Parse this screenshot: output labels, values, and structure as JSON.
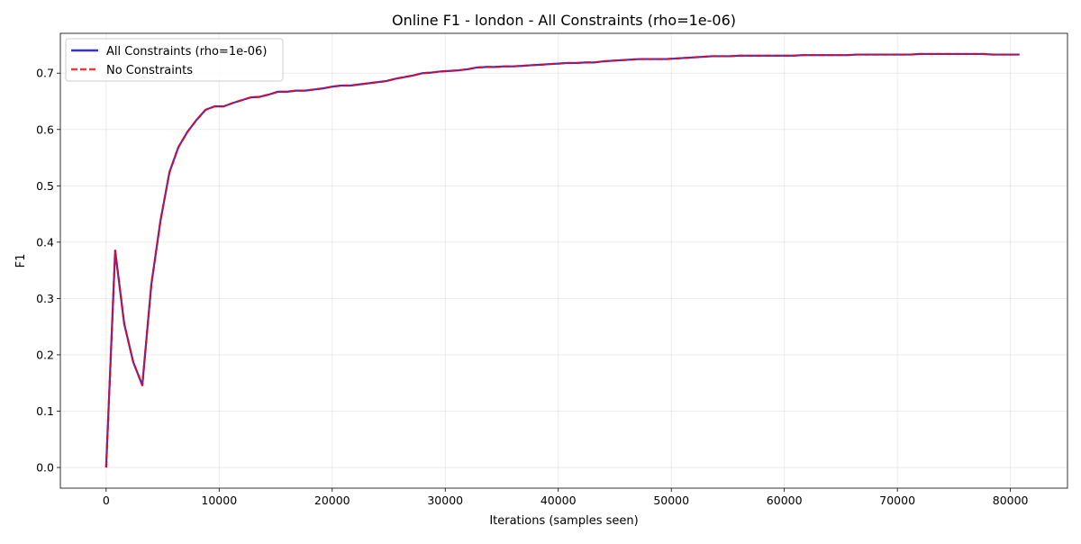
{
  "chart_data": {
    "type": "line",
    "title": "Online F1 - london - All Constraints (rho=1e-06)",
    "xlabel": "Iterations (samples seen)",
    "ylabel": "F1",
    "xlim": [
      -4050,
      85050
    ],
    "ylim": [
      -0.0367,
      0.7707
    ],
    "xticks": [
      0,
      10000,
      20000,
      30000,
      40000,
      50000,
      60000,
      70000,
      80000
    ],
    "yticks": [
      0.0,
      0.1,
      0.2,
      0.3,
      0.4,
      0.5,
      0.6,
      0.7
    ],
    "xtick_labels": [
      "0",
      "10000",
      "20000",
      "30000",
      "40000",
      "50000",
      "60000",
      "70000",
      "80000"
    ],
    "ytick_labels": [
      "0.0",
      "0.1",
      "0.2",
      "0.3",
      "0.4",
      "0.5",
      "0.6",
      "0.7"
    ],
    "grid": true,
    "legend_position": "top-left",
    "x": [
      0,
      800,
      1600,
      2400,
      3200,
      4000,
      4800,
      5600,
      6400,
      7200,
      8000,
      8800,
      9600,
      10400,
      11200,
      12000,
      12800,
      13600,
      14400,
      15200,
      16000,
      16800,
      17600,
      18400,
      19200,
      20000,
      20800,
      21600,
      22400,
      23200,
      24000,
      24800,
      25600,
      26400,
      27200,
      28000,
      28800,
      29600,
      30400,
      31200,
      32000,
      32800,
      33600,
      34400,
      35200,
      36000,
      36800,
      37600,
      38400,
      39200,
      40000,
      40800,
      41600,
      42400,
      43200,
      44000,
      44800,
      45600,
      46400,
      47200,
      48000,
      48800,
      49600,
      50400,
      51200,
      52000,
      52800,
      53600,
      54400,
      55200,
      56000,
      56800,
      57600,
      58400,
      59200,
      60000,
      60800,
      61600,
      62400,
      63200,
      64000,
      64800,
      65600,
      66400,
      67200,
      68000,
      68800,
      69600,
      70400,
      71200,
      72000,
      72800,
      73600,
      74400,
      75200,
      76000,
      76800,
      77600,
      78400,
      79200,
      80000,
      80800
    ],
    "series": [
      {
        "name": "All Constraints (rho=1e-06)",
        "color": "#0000dd",
        "style": "solid",
        "values": [
          0.0,
          0.385,
          0.255,
          0.187,
          0.146,
          0.325,
          0.437,
          0.524,
          0.569,
          0.596,
          0.617,
          0.635,
          0.641,
          0.641,
          0.647,
          0.652,
          0.657,
          0.658,
          0.662,
          0.667,
          0.667,
          0.669,
          0.669,
          0.671,
          0.673,
          0.676,
          0.678,
          0.678,
          0.68,
          0.682,
          0.684,
          0.686,
          0.69,
          0.693,
          0.696,
          0.7,
          0.701,
          0.703,
          0.704,
          0.705,
          0.707,
          0.71,
          0.711,
          0.711,
          0.712,
          0.712,
          0.713,
          0.714,
          0.715,
          0.716,
          0.717,
          0.718,
          0.718,
          0.719,
          0.719,
          0.721,
          0.722,
          0.723,
          0.724,
          0.725,
          0.725,
          0.725,
          0.725,
          0.726,
          0.727,
          0.728,
          0.729,
          0.73,
          0.73,
          0.73,
          0.731,
          0.731,
          0.731,
          0.731,
          0.731,
          0.731,
          0.731,
          0.732,
          0.732,
          0.732,
          0.732,
          0.732,
          0.732,
          0.733,
          0.733,
          0.733,
          0.733,
          0.733,
          0.733,
          0.733,
          0.734,
          0.734,
          0.734,
          0.734,
          0.734,
          0.734,
          0.734,
          0.734,
          0.733,
          0.733,
          0.733,
          0.733
        ]
      },
      {
        "name": "No Constraints",
        "color": "#ff0000",
        "style": "dashed",
        "values": [
          0.0,
          0.385,
          0.255,
          0.187,
          0.146,
          0.325,
          0.437,
          0.524,
          0.569,
          0.596,
          0.617,
          0.635,
          0.641,
          0.641,
          0.647,
          0.652,
          0.657,
          0.658,
          0.662,
          0.667,
          0.667,
          0.669,
          0.669,
          0.671,
          0.673,
          0.676,
          0.678,
          0.678,
          0.68,
          0.682,
          0.684,
          0.686,
          0.69,
          0.693,
          0.696,
          0.7,
          0.701,
          0.703,
          0.704,
          0.705,
          0.707,
          0.71,
          0.711,
          0.711,
          0.712,
          0.712,
          0.713,
          0.714,
          0.715,
          0.716,
          0.717,
          0.718,
          0.718,
          0.719,
          0.719,
          0.721,
          0.722,
          0.723,
          0.724,
          0.725,
          0.725,
          0.725,
          0.725,
          0.726,
          0.727,
          0.728,
          0.729,
          0.73,
          0.73,
          0.73,
          0.731,
          0.731,
          0.731,
          0.731,
          0.731,
          0.731,
          0.731,
          0.732,
          0.732,
          0.732,
          0.732,
          0.732,
          0.732,
          0.733,
          0.733,
          0.733,
          0.733,
          0.733,
          0.733,
          0.733,
          0.734,
          0.734,
          0.734,
          0.734,
          0.734,
          0.734,
          0.734,
          0.734,
          0.733,
          0.733,
          0.733,
          0.733
        ]
      }
    ]
  }
}
